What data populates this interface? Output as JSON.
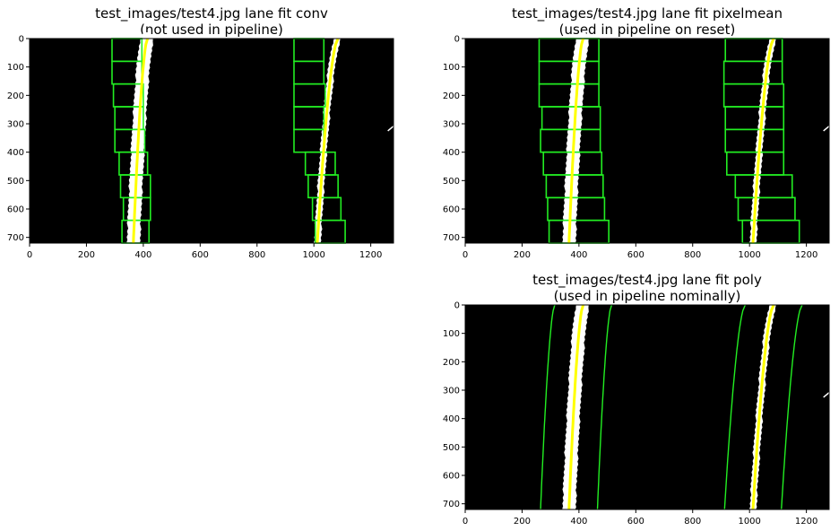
{
  "chart_data": [
    {
      "type": "image",
      "title": [
        "test_images/test4.jpg lane fit conv",
        "(not used in pipeline)"
      ],
      "xlim": [
        0,
        1280
      ],
      "ylim": [
        720,
        0
      ],
      "xticks": [
        0,
        200,
        400,
        600,
        800,
        1000,
        1200
      ],
      "yticks": [
        0,
        100,
        200,
        300,
        400,
        500,
        600,
        700
      ],
      "left_fit": {
        "x_top": 415,
        "x_bottom": 365
      },
      "right_fit": {
        "x_top": 1085,
        "x_bottom": 1012
      },
      "windows": {
        "height": 80,
        "left_x": [
          [
            325,
            420
          ],
          [
            330,
            425
          ],
          [
            320,
            425
          ],
          [
            315,
            415
          ],
          [
            300,
            405
          ],
          [
            300,
            400
          ],
          [
            295,
            400
          ],
          [
            290,
            395
          ],
          [
            290,
            395
          ]
        ],
        "right_x": [
          [
            1005,
            1110
          ],
          [
            995,
            1095
          ],
          [
            980,
            1085
          ],
          [
            970,
            1075
          ],
          [
            930,
            1035
          ],
          [
            930,
            1035
          ],
          [
            930,
            1040
          ],
          [
            930,
            1035
          ],
          [
            930,
            1035
          ]
        ]
      }
    },
    {
      "type": "image",
      "title": [
        "test_images/test4.jpg lane fit pixelmean",
        "(used in pipeline on reset)"
      ],
      "xlim": [
        0,
        1280
      ],
      "ylim": [
        720,
        0
      ],
      "xticks": [
        0,
        200,
        400,
        600,
        800,
        1000,
        1200
      ],
      "yticks": [
        0,
        100,
        200,
        300,
        400,
        500,
        600,
        700
      ],
      "left_fit": {
        "x_top": 415,
        "x_bottom": 365
      },
      "right_fit": {
        "x_top": 1085,
        "x_bottom": 1012
      },
      "windows": {
        "height": 80,
        "left_x": [
          [
            295,
            505
          ],
          [
            290,
            490
          ],
          [
            285,
            485
          ],
          [
            275,
            480
          ],
          [
            265,
            475
          ],
          [
            270,
            475
          ],
          [
            260,
            470
          ],
          [
            260,
            470
          ],
          [
            260,
            470
          ]
        ],
        "right_x": [
          [
            975,
            1175
          ],
          [
            960,
            1160
          ],
          [
            950,
            1150
          ],
          [
            920,
            1120
          ],
          [
            915,
            1120
          ],
          [
            915,
            1120
          ],
          [
            910,
            1120
          ],
          [
            910,
            1115
          ],
          [
            915,
            1115
          ]
        ]
      }
    },
    {
      "type": "image",
      "title": [
        "test_images/test4.jpg lane fit poly",
        "(used in pipeline nominally)"
      ],
      "xlim": [
        0,
        1280
      ],
      "ylim": [
        720,
        0
      ],
      "xticks": [
        0,
        200,
        400,
        600,
        800,
        1000,
        1200
      ],
      "yticks": [
        0,
        100,
        200,
        300,
        400,
        500,
        600,
        700
      ],
      "left_fit": {
        "x_top": 415,
        "x_bottom": 365
      },
      "right_fit": {
        "x_top": 1085,
        "x_bottom": 1012
      },
      "margin_curves": {
        "left_inner": {
          "x_top": 315,
          "x_bottom": 265
        },
        "left_outer": {
          "x_top": 515,
          "x_bottom": 465
        },
        "right_inner": {
          "x_top": 985,
          "x_bottom": 912
        },
        "right_outer": {
          "x_top": 1185,
          "x_bottom": 1112
        }
      }
    }
  ],
  "colors": {
    "background": "#000000",
    "fit": "#ffff00",
    "windows": "#22ee22",
    "pixels": "#ffffff"
  }
}
